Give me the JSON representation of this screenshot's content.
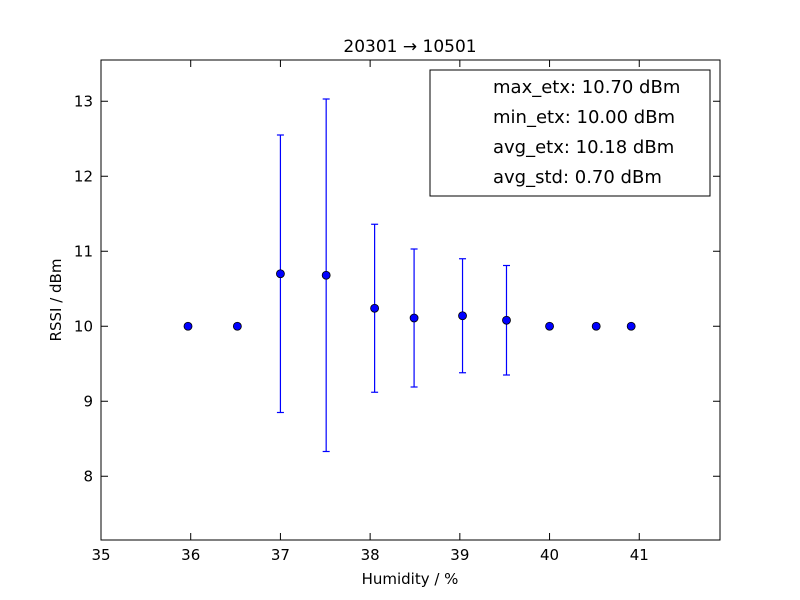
{
  "chart_data": {
    "type": "scatter",
    "title": "20301 → 10501",
    "xlabel": "Humidity / %",
    "ylabel": "RSSI / dBm",
    "xlim": [
      35,
      41.9
    ],
    "ylim": [
      7.15,
      13.55
    ],
    "xticks": [
      "35",
      "36",
      "37",
      "38",
      "39",
      "40",
      "41"
    ],
    "yticks": [
      "8",
      "9",
      "10",
      "11",
      "12",
      "13"
    ],
    "grid": false,
    "legend_position": "top-right",
    "legend_entries": [
      "max_etx: 10.70 dBm",
      "min_etx: 10.00 dBm",
      "avg_etx: 10.18 dBm",
      "avg_std: 0.70 dBm"
    ],
    "series": [
      {
        "color": "#0000ff",
        "x": [
          35.97,
          36.52,
          37.0,
          37.51,
          38.05,
          38.49,
          39.03,
          39.52,
          40.0,
          40.52,
          40.91
        ],
        "y": [
          10.0,
          10.0,
          10.7,
          10.68,
          10.24,
          10.11,
          10.14,
          10.08,
          10.0,
          10.0,
          10.0
        ],
        "err": [
          0,
          0,
          1.85,
          2.35,
          1.12,
          0.92,
          0.76,
          0.73,
          0,
          0,
          0
        ]
      }
    ]
  }
}
